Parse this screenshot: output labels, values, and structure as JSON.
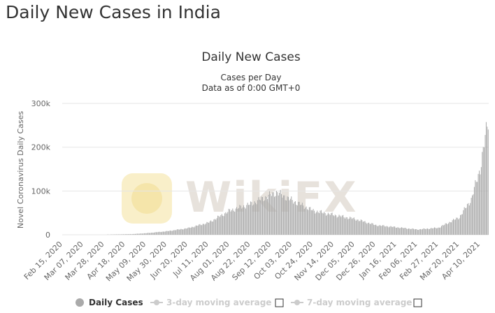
{
  "page": {
    "heading": "Daily New Cases in India"
  },
  "watermark": {
    "text": "WikiFX"
  },
  "colors": {
    "bars": "#aaaaaa",
    "grid": "#e6e6e6",
    "legend_inactive": "#cccccc",
    "watermark": "#e7e2dc"
  },
  "legend": {
    "items": [
      {
        "label": "Daily Cases",
        "active": true,
        "icon": "circle-marker-icon"
      },
      {
        "label": "3-day moving average",
        "active": false,
        "icon": "line-marker-icon",
        "has_checkbox": true
      },
      {
        "label": "7-day moving average",
        "active": false,
        "icon": "line-marker-icon",
        "has_checkbox": true
      }
    ]
  },
  "chart_data": {
    "type": "bar",
    "title": "Daily New Cases",
    "subtitle_lines": [
      "Cases per Day",
      "Data as of 0:00 GMT+0"
    ],
    "ylabel": "Novel Coronavirus Daily Cases",
    "ylim": [
      0,
      300000
    ],
    "yticks": [
      {
        "value": 0,
        "label": "0"
      },
      {
        "value": 100000,
        "label": "100k"
      },
      {
        "value": 200000,
        "label": "200k"
      },
      {
        "value": 300000,
        "label": "300k"
      }
    ],
    "x_start": "2020-02-15",
    "x_end": "2021-04-18",
    "xtick_labels": [
      "Feb 15, 2020",
      "Mar 07, 2020",
      "Mar 28, 2020",
      "Apr 18, 2020",
      "May 09, 2020",
      "May 30, 2020",
      "Jun 20, 2020",
      "Jul 11, 2020",
      "Aug 01, 2020",
      "Aug 22, 2020",
      "Sep 12, 2020",
      "Oct 03, 2020",
      "Oct 24, 2020",
      "Nov 14, 2020",
      "Dec 05, 2020",
      "Dec 26, 2020",
      "Jan 16, 2021",
      "Feb 06, 2021",
      "Feb 27, 2021",
      "Mar 20, 2021",
      "Apr 10, 2021"
    ],
    "series": [
      {
        "name": "Daily Cases",
        "points": [
          [
            "2020-02-15",
            0
          ],
          [
            "2020-03-15",
            50
          ],
          [
            "2020-04-05",
            600
          ],
          [
            "2020-04-25",
            1500
          ],
          [
            "2020-05-09",
            3500
          ],
          [
            "2020-05-30",
            8000
          ],
          [
            "2020-06-20",
            15000
          ],
          [
            "2020-07-11",
            28000
          ],
          [
            "2020-08-01",
            55000
          ],
          [
            "2020-08-22",
            70000
          ],
          [
            "2020-09-12",
            92000
          ],
          [
            "2020-09-17",
            97000
          ],
          [
            "2020-10-03",
            78000
          ],
          [
            "2020-10-24",
            55000
          ],
          [
            "2020-11-14",
            45000
          ],
          [
            "2020-12-05",
            36000
          ],
          [
            "2020-12-26",
            22000
          ],
          [
            "2021-01-16",
            17000
          ],
          [
            "2021-02-06",
            12000
          ],
          [
            "2021-02-27",
            16000
          ],
          [
            "2021-03-20",
            40000
          ],
          [
            "2021-04-01",
            81000
          ],
          [
            "2021-04-10",
            152000
          ],
          [
            "2021-04-18",
            261000
          ]
        ]
      }
    ],
    "grid": true,
    "legend_position": "bottom-center"
  }
}
